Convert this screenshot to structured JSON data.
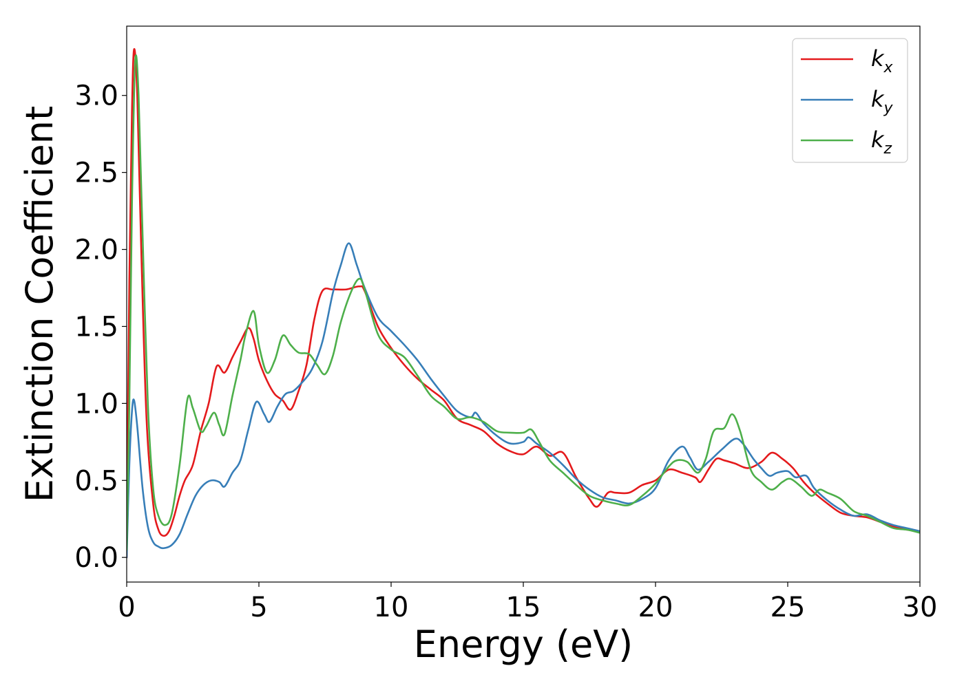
{
  "chart_data": {
    "type": "line",
    "title": "",
    "xlabel": "Energy (eV)",
    "ylabel": "Extinction Coefficient",
    "xlim": [
      0,
      30
    ],
    "ylim": [
      -0.16,
      3.45
    ],
    "x_ticks": [
      0,
      5,
      10,
      15,
      20,
      25,
      30
    ],
    "y_ticks": [
      0.0,
      0.5,
      1.0,
      1.5,
      2.0,
      2.5,
      3.0
    ],
    "x_tick_labels": [
      "0",
      "5",
      "10",
      "15",
      "20",
      "25",
      "30"
    ],
    "y_tick_labels": [
      "0.0",
      "0.5",
      "1.0",
      "1.5",
      "2.0",
      "2.5",
      "3.0"
    ],
    "grid": false,
    "legend_position": "top-right",
    "series": [
      {
        "name": "kx",
        "label_main": "k",
        "label_sub": "x",
        "color": "#e41a1c",
        "points": [
          [
            0.0,
            0.0
          ],
          [
            0.1,
            1.8
          ],
          [
            0.2,
            2.9
          ],
          [
            0.28,
            3.3
          ],
          [
            0.4,
            3.0
          ],
          [
            0.55,
            2.0
          ],
          [
            0.75,
            0.9
          ],
          [
            1.0,
            0.35
          ],
          [
            1.2,
            0.18
          ],
          [
            1.4,
            0.14
          ],
          [
            1.6,
            0.17
          ],
          [
            1.8,
            0.27
          ],
          [
            2.0,
            0.4
          ],
          [
            2.2,
            0.5
          ],
          [
            2.5,
            0.6
          ],
          [
            2.8,
            0.82
          ],
          [
            3.1,
            1.0
          ],
          [
            3.4,
            1.24
          ],
          [
            3.7,
            1.2
          ],
          [
            4.0,
            1.3
          ],
          [
            4.3,
            1.4
          ],
          [
            4.6,
            1.49
          ],
          [
            4.8,
            1.42
          ],
          [
            5.0,
            1.28
          ],
          [
            5.3,
            1.15
          ],
          [
            5.6,
            1.06
          ],
          [
            5.9,
            1.02
          ],
          [
            6.2,
            0.96
          ],
          [
            6.5,
            1.08
          ],
          [
            6.8,
            1.25
          ],
          [
            7.1,
            1.55
          ],
          [
            7.4,
            1.73
          ],
          [
            7.8,
            1.74
          ],
          [
            8.3,
            1.74
          ],
          [
            8.8,
            1.76
          ],
          [
            9.0,
            1.73
          ],
          [
            9.5,
            1.5
          ],
          [
            10.0,
            1.36
          ],
          [
            10.5,
            1.25
          ],
          [
            11.0,
            1.16
          ],
          [
            11.5,
            1.09
          ],
          [
            12.0,
            1.02
          ],
          [
            12.5,
            0.9
          ],
          [
            13.0,
            0.86
          ],
          [
            13.5,
            0.82
          ],
          [
            14.0,
            0.74
          ],
          [
            14.5,
            0.69
          ],
          [
            15.0,
            0.67
          ],
          [
            15.5,
            0.72
          ],
          [
            16.0,
            0.66
          ],
          [
            16.5,
            0.68
          ],
          [
            17.0,
            0.52
          ],
          [
            17.5,
            0.38
          ],
          [
            17.8,
            0.33
          ],
          [
            18.2,
            0.42
          ],
          [
            18.5,
            0.42
          ],
          [
            19.0,
            0.42
          ],
          [
            19.5,
            0.47
          ],
          [
            20.0,
            0.5
          ],
          [
            20.5,
            0.57
          ],
          [
            21.0,
            0.55
          ],
          [
            21.5,
            0.52
          ],
          [
            21.7,
            0.49
          ],
          [
            22.0,
            0.57
          ],
          [
            22.3,
            0.64
          ],
          [
            22.6,
            0.63
          ],
          [
            23.0,
            0.61
          ],
          [
            23.5,
            0.58
          ],
          [
            24.0,
            0.62
          ],
          [
            24.4,
            0.68
          ],
          [
            24.8,
            0.64
          ],
          [
            25.2,
            0.58
          ],
          [
            25.6,
            0.49
          ],
          [
            26.0,
            0.42
          ],
          [
            26.5,
            0.35
          ],
          [
            27.0,
            0.29
          ],
          [
            27.5,
            0.27
          ],
          [
            28.0,
            0.26
          ],
          [
            28.5,
            0.23
          ],
          [
            29.0,
            0.2
          ],
          [
            29.5,
            0.18
          ],
          [
            30.0,
            0.17
          ]
        ]
      },
      {
        "name": "ky",
        "label_main": "k",
        "label_sub": "y",
        "color": "#377eb8",
        "points": [
          [
            0.0,
            0.0
          ],
          [
            0.1,
            0.6
          ],
          [
            0.2,
            0.95
          ],
          [
            0.28,
            1.02
          ],
          [
            0.4,
            0.85
          ],
          [
            0.6,
            0.45
          ],
          [
            0.8,
            0.2
          ],
          [
            1.0,
            0.1
          ],
          [
            1.2,
            0.07
          ],
          [
            1.4,
            0.06
          ],
          [
            1.7,
            0.08
          ],
          [
            2.0,
            0.15
          ],
          [
            2.3,
            0.28
          ],
          [
            2.6,
            0.4
          ],
          [
            2.9,
            0.47
          ],
          [
            3.2,
            0.5
          ],
          [
            3.5,
            0.49
          ],
          [
            3.7,
            0.46
          ],
          [
            4.0,
            0.55
          ],
          [
            4.3,
            0.63
          ],
          [
            4.6,
            0.83
          ],
          [
            4.9,
            1.01
          ],
          [
            5.2,
            0.93
          ],
          [
            5.4,
            0.88
          ],
          [
            5.7,
            0.98
          ],
          [
            6.0,
            1.06
          ],
          [
            6.3,
            1.08
          ],
          [
            6.6,
            1.13
          ],
          [
            7.0,
            1.22
          ],
          [
            7.4,
            1.4
          ],
          [
            7.8,
            1.72
          ],
          [
            8.1,
            1.9
          ],
          [
            8.4,
            2.04
          ],
          [
            8.7,
            1.9
          ],
          [
            9.0,
            1.75
          ],
          [
            9.5,
            1.56
          ],
          [
            10.0,
            1.47
          ],
          [
            10.5,
            1.38
          ],
          [
            11.0,
            1.28
          ],
          [
            11.5,
            1.16
          ],
          [
            12.0,
            1.05
          ],
          [
            12.5,
            0.95
          ],
          [
            13.0,
            0.91
          ],
          [
            13.2,
            0.94
          ],
          [
            13.5,
            0.87
          ],
          [
            14.0,
            0.79
          ],
          [
            14.5,
            0.74
          ],
          [
            15.0,
            0.75
          ],
          [
            15.2,
            0.78
          ],
          [
            15.5,
            0.74
          ],
          [
            16.0,
            0.68
          ],
          [
            16.5,
            0.6
          ],
          [
            17.0,
            0.51
          ],
          [
            17.5,
            0.44
          ],
          [
            18.0,
            0.39
          ],
          [
            18.5,
            0.37
          ],
          [
            19.0,
            0.35
          ],
          [
            19.5,
            0.38
          ],
          [
            20.0,
            0.45
          ],
          [
            20.5,
            0.63
          ],
          [
            21.0,
            0.72
          ],
          [
            21.3,
            0.65
          ],
          [
            21.6,
            0.57
          ],
          [
            22.0,
            0.62
          ],
          [
            22.5,
            0.7
          ],
          [
            23.0,
            0.77
          ],
          [
            23.3,
            0.74
          ],
          [
            23.7,
            0.64
          ],
          [
            24.0,
            0.58
          ],
          [
            24.3,
            0.53
          ],
          [
            24.6,
            0.55
          ],
          [
            25.0,
            0.56
          ],
          [
            25.3,
            0.52
          ],
          [
            25.7,
            0.53
          ],
          [
            26.0,
            0.45
          ],
          [
            26.5,
            0.37
          ],
          [
            27.0,
            0.31
          ],
          [
            27.5,
            0.27
          ],
          [
            28.0,
            0.28
          ],
          [
            28.5,
            0.24
          ],
          [
            29.0,
            0.21
          ],
          [
            29.5,
            0.19
          ],
          [
            30.0,
            0.17
          ]
        ]
      },
      {
        "name": "kz",
        "label_main": "k",
        "label_sub": "z",
        "color": "#4daf4a",
        "points": [
          [
            0.0,
            0.05
          ],
          [
            0.1,
            1.0
          ],
          [
            0.2,
            2.3
          ],
          [
            0.32,
            3.22
          ],
          [
            0.45,
            3.0
          ],
          [
            0.6,
            2.1
          ],
          [
            0.8,
            1.0
          ],
          [
            1.0,
            0.45
          ],
          [
            1.2,
            0.27
          ],
          [
            1.45,
            0.21
          ],
          [
            1.7,
            0.28
          ],
          [
            2.0,
            0.6
          ],
          [
            2.3,
            1.03
          ],
          [
            2.5,
            0.97
          ],
          [
            2.8,
            0.82
          ],
          [
            3.0,
            0.85
          ],
          [
            3.3,
            0.94
          ],
          [
            3.5,
            0.86
          ],
          [
            3.7,
            0.8
          ],
          [
            4.0,
            1.05
          ],
          [
            4.3,
            1.28
          ],
          [
            4.5,
            1.45
          ],
          [
            4.8,
            1.6
          ],
          [
            5.0,
            1.38
          ],
          [
            5.3,
            1.2
          ],
          [
            5.6,
            1.28
          ],
          [
            5.9,
            1.44
          ],
          [
            6.2,
            1.38
          ],
          [
            6.5,
            1.33
          ],
          [
            6.9,
            1.32
          ],
          [
            7.2,
            1.25
          ],
          [
            7.5,
            1.19
          ],
          [
            7.8,
            1.31
          ],
          [
            8.1,
            1.53
          ],
          [
            8.5,
            1.73
          ],
          [
            8.8,
            1.81
          ],
          [
            9.0,
            1.74
          ],
          [
            9.5,
            1.45
          ],
          [
            10.0,
            1.35
          ],
          [
            10.5,
            1.3
          ],
          [
            11.0,
            1.18
          ],
          [
            11.5,
            1.05
          ],
          [
            12.0,
            0.98
          ],
          [
            12.5,
            0.9
          ],
          [
            13.0,
            0.91
          ],
          [
            13.5,
            0.88
          ],
          [
            14.0,
            0.82
          ],
          [
            14.5,
            0.81
          ],
          [
            15.0,
            0.81
          ],
          [
            15.3,
            0.83
          ],
          [
            15.6,
            0.75
          ],
          [
            16.0,
            0.63
          ],
          [
            16.5,
            0.55
          ],
          [
            17.0,
            0.47
          ],
          [
            17.5,
            0.4
          ],
          [
            18.0,
            0.37
          ],
          [
            18.5,
            0.35
          ],
          [
            19.0,
            0.34
          ],
          [
            19.5,
            0.4
          ],
          [
            20.0,
            0.48
          ],
          [
            20.5,
            0.59
          ],
          [
            20.8,
            0.63
          ],
          [
            21.2,
            0.62
          ],
          [
            21.6,
            0.55
          ],
          [
            21.9,
            0.64
          ],
          [
            22.2,
            0.82
          ],
          [
            22.6,
            0.84
          ],
          [
            22.9,
            0.93
          ],
          [
            23.2,
            0.82
          ],
          [
            23.6,
            0.57
          ],
          [
            24.0,
            0.49
          ],
          [
            24.4,
            0.44
          ],
          [
            24.8,
            0.49
          ],
          [
            25.1,
            0.51
          ],
          [
            25.5,
            0.46
          ],
          [
            25.9,
            0.4
          ],
          [
            26.2,
            0.44
          ],
          [
            26.5,
            0.42
          ],
          [
            27.0,
            0.38
          ],
          [
            27.5,
            0.3
          ],
          [
            28.0,
            0.27
          ],
          [
            28.5,
            0.23
          ],
          [
            29.0,
            0.19
          ],
          [
            29.5,
            0.18
          ],
          [
            30.0,
            0.16
          ]
        ]
      }
    ]
  }
}
